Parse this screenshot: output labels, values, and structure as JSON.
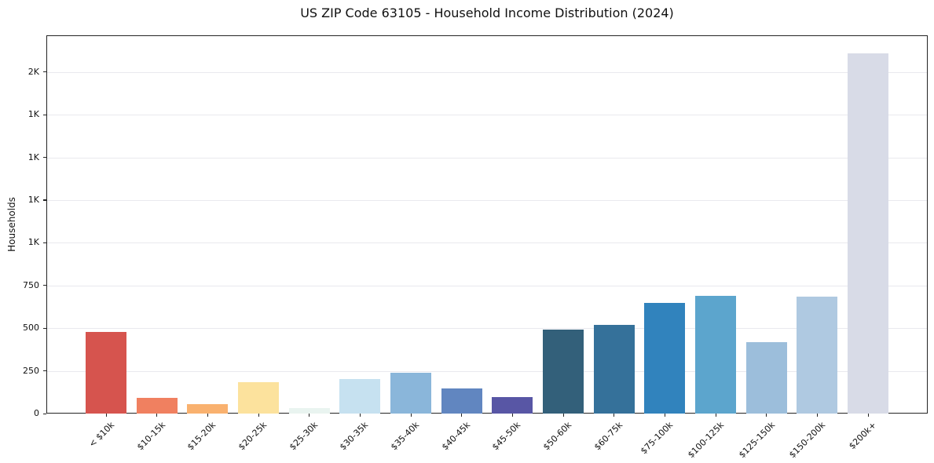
{
  "chart_data": {
    "type": "bar",
    "title": "US ZIP Code 63105 - Household Income Distribution (2024)",
    "xlabel": "",
    "ylabel": "Households",
    "ylim": [
      0,
      2215
    ],
    "grid": "horizontal",
    "legend": "none",
    "categories": [
      "< $10k",
      "$10-15k",
      "$15-20k",
      "$20-25k",
      "$25-30k",
      "$30-35k",
      "$35-40k",
      "$40-45k",
      "$45-50k",
      "$50-60k",
      "$60-75k",
      "$75-100k",
      "$100-125k",
      "$125-150k",
      "$150-200k",
      "$200k+"
    ],
    "values": [
      477,
      94,
      57,
      184,
      32,
      200,
      241,
      149,
      98,
      494,
      521,
      647,
      690,
      420,
      687,
      2110
    ],
    "bar_colors": [
      "#d6544e",
      "#f08060",
      "#f9b16f",
      "#fce29d",
      "#e9f4f0",
      "#c6e1f0",
      "#8ab6da",
      "#6186c0",
      "#5856a5",
      "#33607a",
      "#35719a",
      "#3183bd",
      "#5ca5cd",
      "#9cbedb",
      "#afc9e1",
      "#d8dbe7"
    ],
    "y_ticks": [
      {
        "value": 0,
        "label": "0"
      },
      {
        "value": 250,
        "label": "250"
      },
      {
        "value": 500,
        "label": "500"
      },
      {
        "value": 750,
        "label": "750"
      },
      {
        "value": 1000,
        "label": "1K"
      },
      {
        "value": 1250,
        "label": "1K"
      },
      {
        "value": 1500,
        "label": "1K"
      },
      {
        "value": 1750,
        "label": "1K"
      },
      {
        "value": 2000,
        "label": "2K"
      }
    ]
  },
  "colors": {
    "background": "#ffffff",
    "spine": "#242424",
    "grid": "#e9e9ee",
    "tick": "#242424",
    "text": "#111111"
  }
}
